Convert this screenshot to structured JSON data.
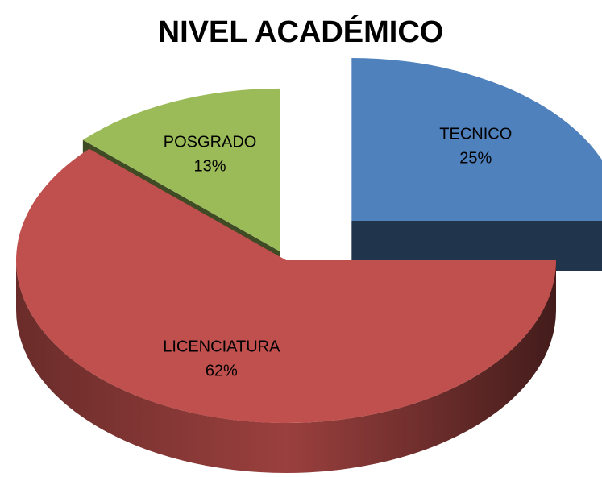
{
  "chart_data": {
    "type": "pie",
    "title": "NIVEL ACADÉMICO",
    "categories": [
      "TECNICO",
      "LICENCIATURA",
      "POSGRADO"
    ],
    "values": [
      25,
      62,
      13
    ],
    "value_labels": [
      "25%",
      "62%",
      "13%"
    ],
    "colors": [
      "#4f81bd",
      "#c0504d",
      "#9bbb59"
    ]
  }
}
